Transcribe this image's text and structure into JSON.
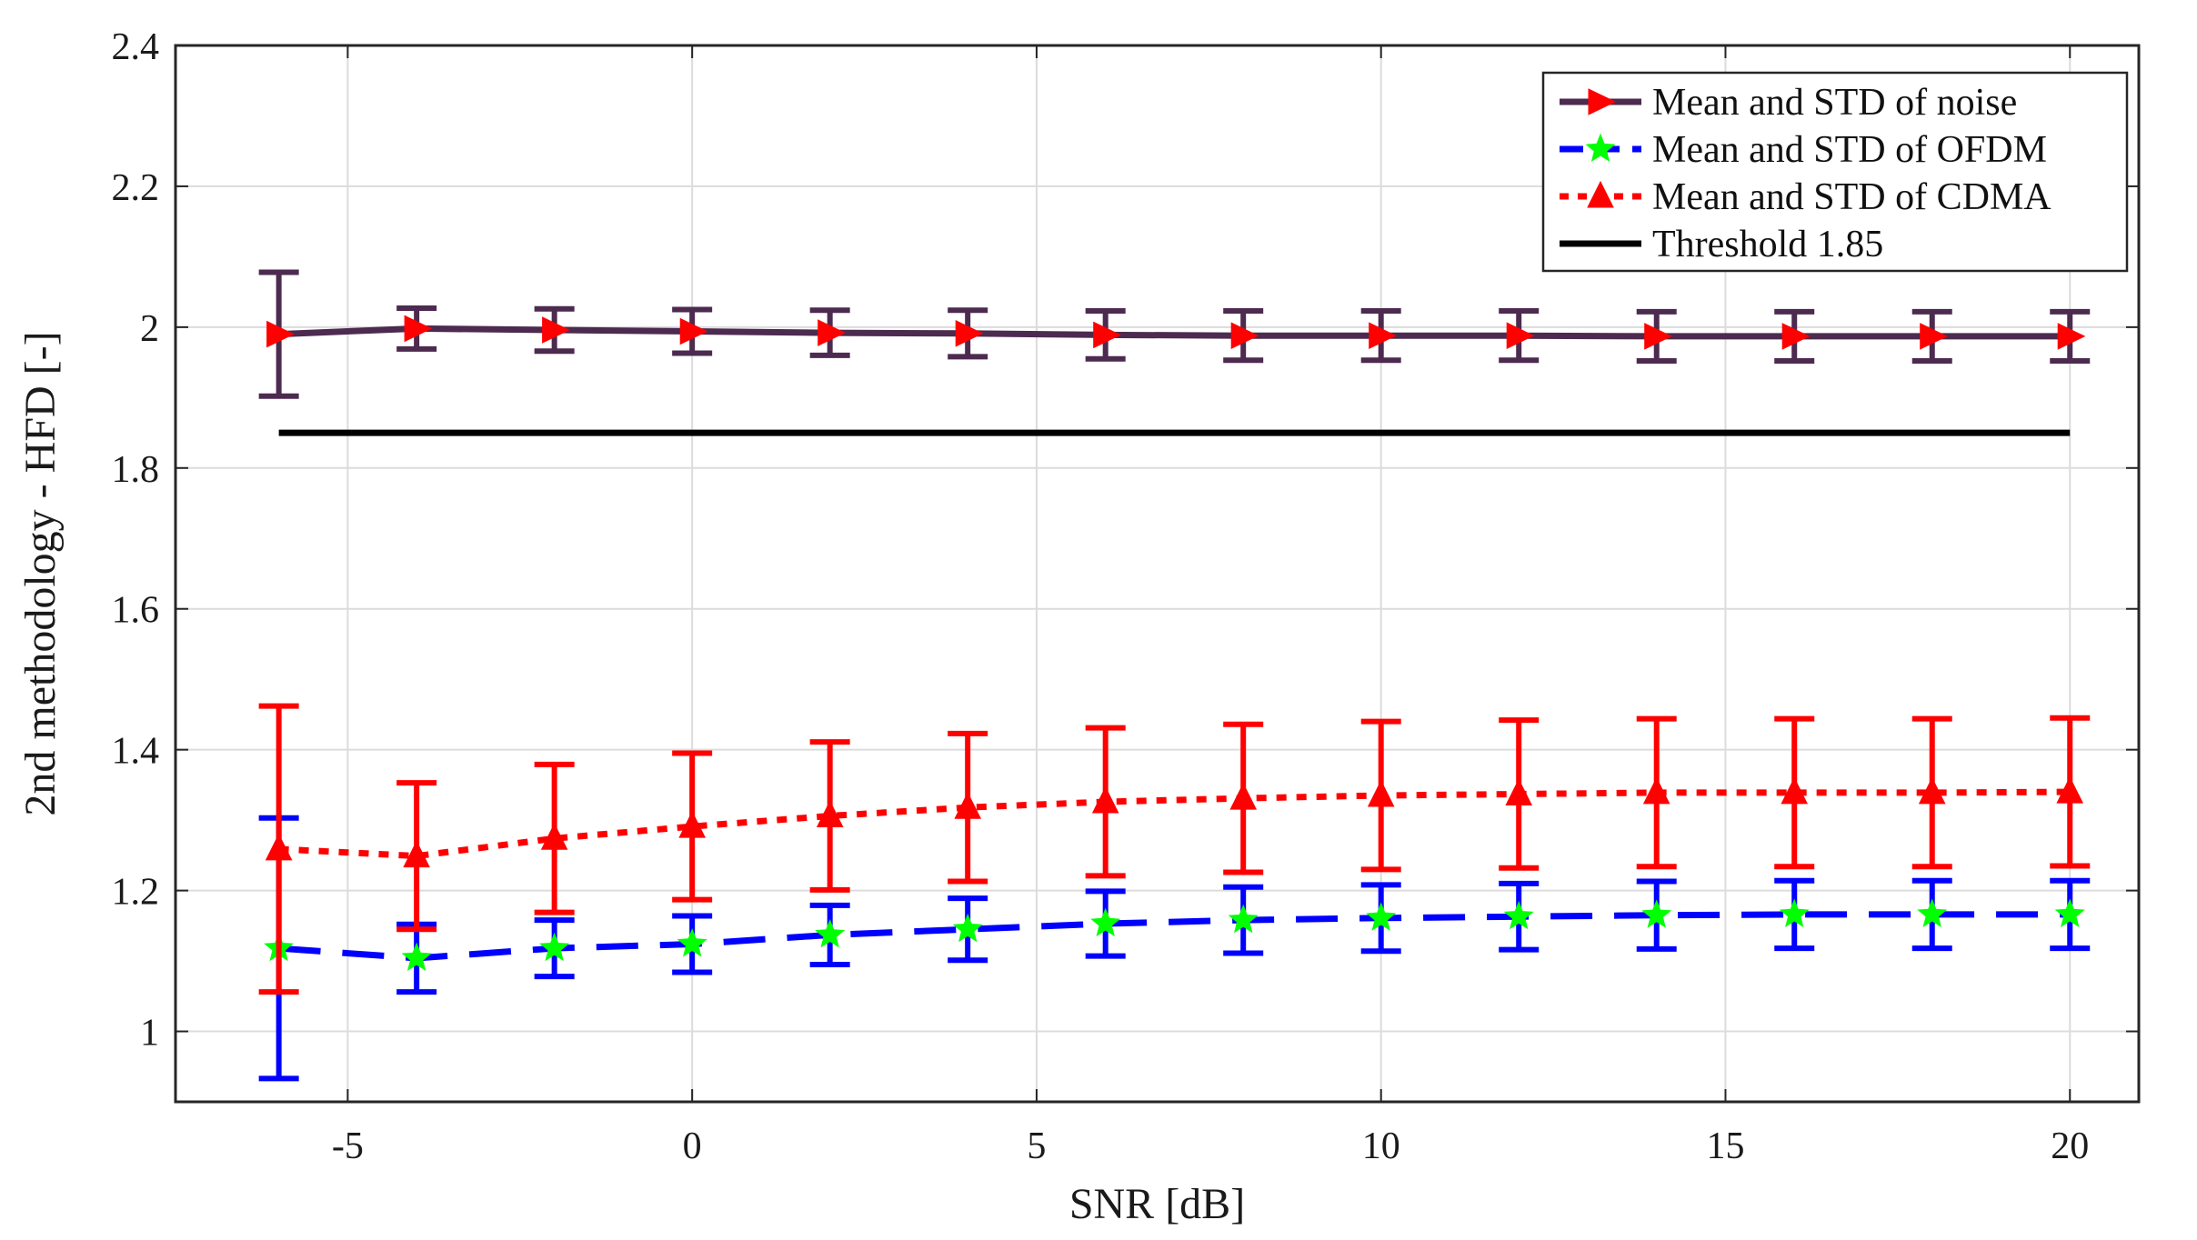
{
  "chart_data": {
    "type": "line",
    "title": "",
    "xlabel": "SNR [dB]",
    "ylabel": "2nd methodology - HFD [-]",
    "xlim": [
      -7.5,
      21
    ],
    "ylim": [
      0.9,
      2.4
    ],
    "xticks": [
      -5,
      0,
      5,
      10,
      15,
      20
    ],
    "xtick_labels": [
      "-5",
      "0",
      "5",
      "10",
      "15",
      "20"
    ],
    "yticks": [
      1,
      1.2,
      1.4,
      1.6,
      1.8,
      2,
      2.2,
      2.4
    ],
    "ytick_labels": [
      "1",
      "1.2",
      "1.4",
      "1.6",
      "1.8",
      "2",
      "2.2",
      "2.4"
    ],
    "grid": true,
    "legend_position": "top-right",
    "x": [
      -6,
      -4,
      -2,
      0,
      2,
      4,
      6,
      8,
      10,
      12,
      14,
      16,
      18,
      20
    ],
    "series": [
      {
        "name": "Mean and STD of noise",
        "color": "#4d2a4f",
        "marker_color": "#ff0000",
        "marker": "triangle-right",
        "line_style": "solid",
        "values": [
          1.99,
          1.998,
          1.996,
          1.994,
          1.992,
          1.991,
          1.989,
          1.988,
          1.988,
          1.988,
          1.987,
          1.987,
          1.987,
          1.987
        ],
        "error": [
          0.088,
          0.029,
          0.03,
          0.031,
          0.032,
          0.033,
          0.034,
          0.035,
          0.035,
          0.035,
          0.035,
          0.035,
          0.035,
          0.035
        ]
      },
      {
        "name": "Mean and STD of OFDM",
        "color": "#0000ff",
        "marker_color": "#00ff00",
        "marker": "star",
        "line_style": "dashed",
        "values": [
          1.118,
          1.104,
          1.118,
          1.124,
          1.137,
          1.145,
          1.153,
          1.158,
          1.161,
          1.163,
          1.165,
          1.166,
          1.166,
          1.166
        ],
        "error": [
          0.185,
          0.048,
          0.04,
          0.04,
          0.042,
          0.044,
          0.046,
          0.047,
          0.047,
          0.047,
          0.048,
          0.048,
          0.048,
          0.048
        ]
      },
      {
        "name": "Mean and STD of CDMA",
        "color": "#ff0000",
        "marker_color": "#ff0000",
        "marker": "triangle-up",
        "line_style": "dotted",
        "values": [
          1.259,
          1.249,
          1.274,
          1.291,
          1.306,
          1.318,
          1.326,
          1.331,
          1.335,
          1.337,
          1.339,
          1.339,
          1.339,
          1.34
        ],
        "error": [
          0.203,
          0.104,
          0.105,
          0.104,
          0.105,
          0.105,
          0.105,
          0.105,
          0.105,
          0.105,
          0.105,
          0.105,
          0.105,
          0.105
        ]
      },
      {
        "name": "Threshold 1.85",
        "color": "#000000",
        "line_style": "solid",
        "x_range": [
          -6,
          20
        ],
        "value": 1.85
      }
    ]
  }
}
